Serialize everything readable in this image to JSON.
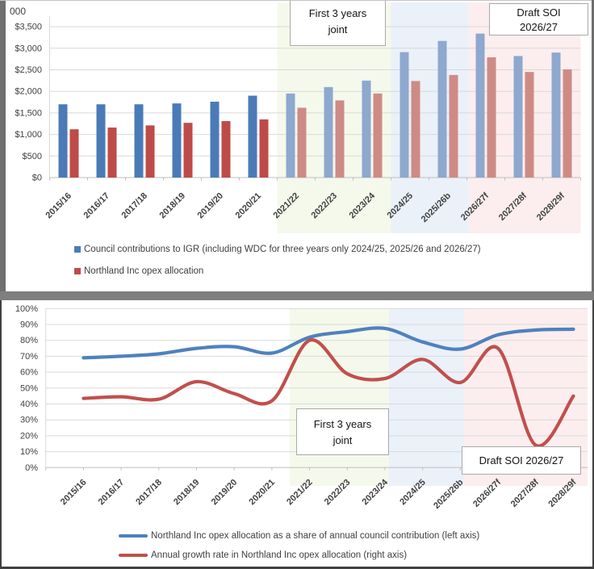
{
  "chart_data": [
    {
      "type": "bar",
      "unit_label": "000",
      "categories": [
        "2015/16",
        "2016/17",
        "2017/18",
        "2018/19",
        "2019/20",
        "2020/21",
        "2021/22",
        "2022/23",
        "2023/24",
        "2024/25",
        "2025/26b",
        "2026/27f",
        "2027/28f",
        "2028/29f"
      ],
      "series": [
        {
          "name": "Council contributions to IGR (including WDC for three years only 2024/25, 2025/26 and 2026/27)",
          "values": [
            1700,
            1700,
            1700,
            1720,
            1760,
            1900,
            1950,
            2100,
            2250,
            2910,
            3170,
            3340,
            2820,
            2900
          ],
          "color": "#4A7BB7",
          "color_faded": "#8EA8CE"
        },
        {
          "name": "Northland Inc opex allocation",
          "values": [
            1120,
            1160,
            1210,
            1270,
            1310,
            1350,
            1620,
            1790,
            1950,
            2240,
            2380,
            2790,
            2450,
            2510
          ],
          "color": "#BE4B48",
          "color_faded": "#CE8B85"
        }
      ],
      "faded_from_index": 6,
      "ylim": [
        0,
        3500
      ],
      "y_tick_step": 500,
      "y_ticks": [
        "$3,500",
        "$3,000",
        "$2,500",
        "$2,000",
        "$1,500",
        "$1,000",
        "$500",
        "$0"
      ],
      "grid": true,
      "legend_position": "bottom-left",
      "annotations": [
        {
          "lines": [
            "First 3 years",
            "joint"
          ]
        },
        {
          "lines": [
            "Draft SOI",
            "2026/27"
          ]
        }
      ],
      "bands": [
        {
          "categories": "2021/22-2023/24",
          "color": "#f4f9ec"
        },
        {
          "categories": "2024/25-2025/26b",
          "color": "#ebf1f9"
        },
        {
          "categories": "2026/27f-2028/29f",
          "color": "#fceeee"
        }
      ]
    },
    {
      "type": "line",
      "categories": [
        "2015/16",
        "2016/17",
        "2017/18",
        "2018/19",
        "2019/20",
        "2020/21",
        "2021/22",
        "2022/23",
        "2023/24",
        "2024/25",
        "2025/26b",
        "2026/27f",
        "2027/28f",
        "2028/29f"
      ],
      "series": [
        {
          "name": "Northland Inc opex allocation as a share of annual council contribution (left axis)",
          "values": [
            69,
            70,
            71.5,
            75,
            76,
            72,
            82,
            85.5,
            87.5,
            79,
            74.5,
            83.5,
            86.5,
            87
          ],
          "color": "#4F81BD"
        },
        {
          "name": "Annual growth rate in Northland Inc opex allocation (right axis)",
          "values": [
            43.5,
            44.5,
            43,
            54,
            46.5,
            42,
            80,
            59,
            56,
            68,
            53.5,
            75,
            14,
            45
          ],
          "color": "#C0504D",
          "axis_note": "right axis unlabeled; values read against left-axis scale"
        }
      ],
      "ylim": [
        0,
        100
      ],
      "y_tick_step": 10,
      "y_ticks": [
        "100%",
        "90%",
        "80%",
        "70%",
        "60%",
        "50%",
        "40%",
        "30%",
        "20%",
        "10%",
        "0%"
      ],
      "grid": true,
      "smooth": true,
      "legend_position": "bottom-left",
      "annotations": [
        {
          "lines": [
            "First 3 years",
            "joint"
          ]
        },
        {
          "lines": [
            "Draft SOI 2026/27"
          ]
        }
      ],
      "bands": [
        {
          "categories": "2021/22-2023/24",
          "color": "#f4f9ec"
        },
        {
          "categories": "2024/25-2025/26b",
          "color": "#ebf1f9"
        },
        {
          "categories": "2026/27f-2028/29f",
          "color": "#fceeee"
        }
      ]
    }
  ]
}
